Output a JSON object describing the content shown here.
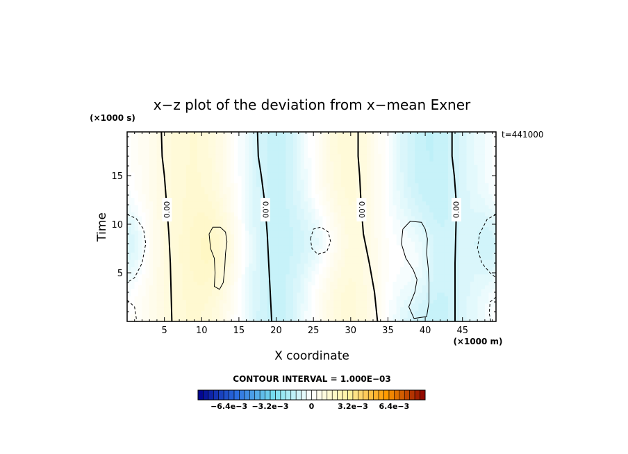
{
  "chart_data": {
    "type": "heatmap",
    "title": "x−z plot of the deviation from x−mean Exner",
    "xlabel": "X coordinate",
    "ylabel": "Time",
    "x_unit": "(×1000 m)",
    "y_unit": "(×1000 s)",
    "time_stamp": "t=441000",
    "xlim": [
      0,
      49.5
    ],
    "ylim": [
      0,
      19.5
    ],
    "x_ticks": [
      5,
      10,
      15,
      20,
      25,
      30,
      35,
      40,
      45
    ],
    "y_ticks": [
      5,
      10,
      15
    ],
    "x_tick_labels": [
      "5",
      "10",
      "15",
      "20",
      "25",
      "30",
      "35",
      "40",
      "45"
    ],
    "y_tick_labels": [
      "5",
      "10",
      "15"
    ],
    "contour_interval_text": "CONTOUR INTERVAL = 1.000E−03",
    "zero_contour_label": "0.00",
    "zero_contours": [
      {
        "label": "0.00",
        "points": [
          [
            4.6,
            19.5
          ],
          [
            4.7,
            17
          ],
          [
            5.0,
            15
          ],
          [
            5.3,
            12
          ],
          [
            5.6,
            9
          ],
          [
            5.8,
            6
          ],
          [
            5.9,
            3
          ],
          [
            6.0,
            0
          ]
        ]
      },
      {
        "label": "0.00",
        "points": [
          [
            17.5,
            19.5
          ],
          [
            17.6,
            17
          ],
          [
            18.0,
            15
          ],
          [
            18.5,
            12
          ],
          [
            18.8,
            9
          ],
          [
            19.0,
            6
          ],
          [
            19.2,
            3
          ],
          [
            19.4,
            0
          ]
        ]
      },
      {
        "label": "0.00",
        "points": [
          [
            31.0,
            19.5
          ],
          [
            31.0,
            17
          ],
          [
            31.2,
            15
          ],
          [
            31.4,
            12
          ],
          [
            31.7,
            9
          ],
          [
            32.5,
            6
          ],
          [
            33.2,
            3
          ],
          [
            33.6,
            0
          ]
        ]
      },
      {
        "label": "0.00",
        "points": [
          [
            43.6,
            19.5
          ],
          [
            43.6,
            17
          ],
          [
            43.9,
            15
          ],
          [
            44.2,
            12
          ],
          [
            44.1,
            9
          ],
          [
            44.0,
            6
          ],
          [
            44.0,
            3
          ],
          [
            44.0,
            0
          ]
        ]
      }
    ],
    "positive_contours": [
      {
        "level": 0.001,
        "points": [
          [
            11.0,
            9.0
          ],
          [
            11.5,
            9.7
          ],
          [
            12.5,
            9.7
          ],
          [
            13.2,
            9.2
          ],
          [
            13.4,
            8.2
          ],
          [
            13.2,
            7.0
          ],
          [
            13.1,
            5.5
          ],
          [
            12.9,
            4.0
          ],
          [
            12.4,
            3.3
          ],
          [
            11.7,
            3.6
          ],
          [
            11.8,
            5.0
          ],
          [
            11.7,
            6.5
          ],
          [
            11.2,
            7.5
          ],
          [
            11.0,
            9.0
          ]
        ]
      },
      {
        "level": 0.001,
        "points": [
          [
            37.0,
            9.5
          ],
          [
            38.0,
            10.3
          ],
          [
            39.5,
            10.2
          ],
          [
            40.0,
            9.5
          ],
          [
            40.3,
            8.5
          ],
          [
            40.2,
            7.0
          ],
          [
            40.4,
            5.5
          ],
          [
            40.5,
            4.0
          ],
          [
            40.5,
            2.0
          ],
          [
            40.2,
            0.5
          ],
          [
            38.5,
            0.3
          ],
          [
            37.8,
            1.5
          ],
          [
            38.6,
            3.0
          ],
          [
            38.9,
            4.3
          ],
          [
            38.4,
            5.3
          ],
          [
            37.4,
            6.5
          ],
          [
            36.8,
            8.0
          ],
          [
            37.0,
            9.5
          ]
        ]
      }
    ],
    "negative_contours": [
      {
        "level": -0.001,
        "points": [
          [
            24.6,
            8.5
          ],
          [
            25.0,
            9.5
          ],
          [
            26.0,
            9.7
          ],
          [
            27.0,
            9.2
          ],
          [
            27.3,
            8.2
          ],
          [
            26.8,
            7.2
          ],
          [
            25.6,
            6.9
          ],
          [
            24.8,
            7.5
          ],
          [
            24.6,
            8.5
          ]
        ]
      },
      {
        "level": -0.001,
        "points": [
          [
            0,
            11.0
          ],
          [
            1.2,
            10.6
          ],
          [
            2.2,
            9.5
          ],
          [
            2.5,
            8
          ],
          [
            2.0,
            6
          ],
          [
            1.0,
            4.5
          ],
          [
            0,
            4.0
          ]
        ]
      },
      {
        "level": -0.001,
        "points": [
          [
            0,
            2.2
          ],
          [
            1.0,
            1.5
          ],
          [
            1.3,
            0
          ]
        ]
      },
      {
        "level": -0.001,
        "points": [
          [
            49.5,
            11.0
          ],
          [
            48.3,
            10.5
          ],
          [
            47.3,
            9.0
          ],
          [
            47.0,
            7.5
          ],
          [
            47.6,
            6.0
          ],
          [
            48.7,
            5.0
          ],
          [
            49.5,
            4.5
          ]
        ]
      },
      {
        "level": -0.001,
        "points": [
          [
            49.5,
            2.5
          ],
          [
            48.7,
            2.0
          ],
          [
            48.6,
            0.8
          ],
          [
            48.8,
            0
          ]
        ]
      }
    ],
    "colorbar": {
      "range": [
        -0.0088,
        0.0088
      ],
      "tick_labels": [
        "−6.4e−3",
        "−3.2e−3",
        "0",
        "3.2e−3",
        "6.4e−3"
      ],
      "tick_values": [
        -0.0064,
        -0.0032,
        0,
        0.0032,
        0.0064
      ],
      "levels": 44
    },
    "field_model": {
      "x_fourier": [
        {
          "k": 1,
          "a": 0.0,
          "b": 0.0004
        },
        {
          "k": 2,
          "a": 0.0,
          "b": 0.0011
        },
        {
          "k": 3,
          "a": 0.0,
          "b": -0.0004
        }
      ],
      "anomalies": [
        {
          "x": 12.2,
          "y": 7.5,
          "sx": 3.5,
          "sy": 4.5,
          "amp": 0.0007
        },
        {
          "x": 38.6,
          "y": 6.5,
          "sx": 3.0,
          "sy": 5.0,
          "amp": 0.0009
        },
        {
          "x": 26.0,
          "y": 8.3,
          "sx": 3.5,
          "sy": 4.0,
          "amp": -0.0008
        },
        {
          "x": 0.5,
          "y": 8.0,
          "sx": 2.5,
          "sy": 4.0,
          "amp": -0.0009
        },
        {
          "x": 49.0,
          "y": 8.0,
          "sx": 2.5,
          "sy": 4.0,
          "amp": -0.0009
        }
      ]
    },
    "colors": {
      "neg_dark": "#00008b",
      "neg_mid": "#2a6de0",
      "neg_light": "#78e0f0",
      "zero": "#ffffff",
      "pos_light": "#fff2a0",
      "pos_mid": "#ff9a00",
      "pos_dark": "#8b0000"
    }
  }
}
